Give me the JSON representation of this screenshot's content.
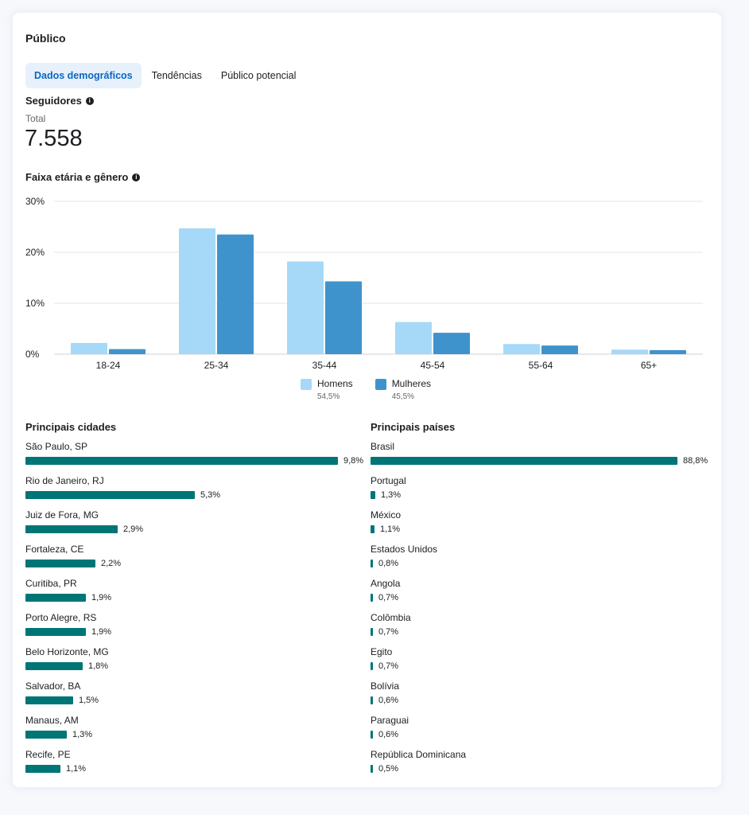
{
  "title": "Público",
  "tabs": [
    {
      "label": "Dados demográficos",
      "active": true
    },
    {
      "label": "Tendências",
      "active": false
    },
    {
      "label": "Público potencial",
      "active": false
    }
  ],
  "followers": {
    "heading": "Seguidores",
    "total_label": "Total",
    "total_value": "7.558"
  },
  "age_gender": {
    "heading": "Faixa etária e gênero"
  },
  "chart_data": {
    "type": "bar",
    "categories": [
      "18-24",
      "25-34",
      "35-44",
      "45-54",
      "55-64",
      "65+"
    ],
    "series": [
      {
        "name": "Homens",
        "values": [
          2.2,
          24.7,
          18.2,
          6.3,
          2.0,
          0.9
        ],
        "color": "#a5d9f7",
        "share": "54,5%"
      },
      {
        "name": "Mulheres",
        "values": [
          1.0,
          23.5,
          14.3,
          4.2,
          1.7,
          0.8
        ],
        "color": "#3f93cc",
        "share": "45,5%"
      }
    ],
    "y_ticks": [
      "0%",
      "10%",
      "20%",
      "30%"
    ],
    "ylim": [
      0,
      30
    ],
    "grid": true,
    "legend": "bottom-center"
  },
  "cities": {
    "heading": "Principais cidades",
    "max": 9.8,
    "items": [
      {
        "name": "São Paulo, SP",
        "value": 9.8,
        "label": "9,8%"
      },
      {
        "name": "Rio de Janeiro, RJ",
        "value": 5.3,
        "label": "5,3%"
      },
      {
        "name": "Juiz de Fora, MG",
        "value": 2.9,
        "label": "2,9%"
      },
      {
        "name": "Fortaleza, CE",
        "value": 2.2,
        "label": "2,2%"
      },
      {
        "name": "Curitiba, PR",
        "value": 1.9,
        "label": "1,9%"
      },
      {
        "name": "Porto Alegre, RS",
        "value": 1.9,
        "label": "1,9%"
      },
      {
        "name": "Belo Horizonte, MG",
        "value": 1.8,
        "label": "1,8%"
      },
      {
        "name": "Salvador, BA",
        "value": 1.5,
        "label": "1,5%"
      },
      {
        "name": "Manaus, AM",
        "value": 1.3,
        "label": "1,3%"
      },
      {
        "name": "Recife, PE",
        "value": 1.1,
        "label": "1,1%"
      }
    ]
  },
  "countries": {
    "heading": "Principais países",
    "max": 88.8,
    "items": [
      {
        "name": "Brasil",
        "value": 88.8,
        "label": "88,8%"
      },
      {
        "name": "Portugal",
        "value": 1.3,
        "label": "1,3%"
      },
      {
        "name": "México",
        "value": 1.1,
        "label": "1,1%"
      },
      {
        "name": "Estados Unidos",
        "value": 0.8,
        "label": "0,8%"
      },
      {
        "name": "Angola",
        "value": 0.7,
        "label": "0,7%"
      },
      {
        "name": "Colômbia",
        "value": 0.7,
        "label": "0,7%"
      },
      {
        "name": "Egito",
        "value": 0.7,
        "label": "0,7%"
      },
      {
        "name": "Bolívia",
        "value": 0.6,
        "label": "0,6%"
      },
      {
        "name": "Paraguai",
        "value": 0.6,
        "label": "0,6%"
      },
      {
        "name": "República Dominicana",
        "value": 0.5,
        "label": "0,5%"
      }
    ]
  },
  "colors": {
    "accent": "#0a66c2",
    "bar": "#007576"
  },
  "icons": {
    "info": "info-icon"
  }
}
